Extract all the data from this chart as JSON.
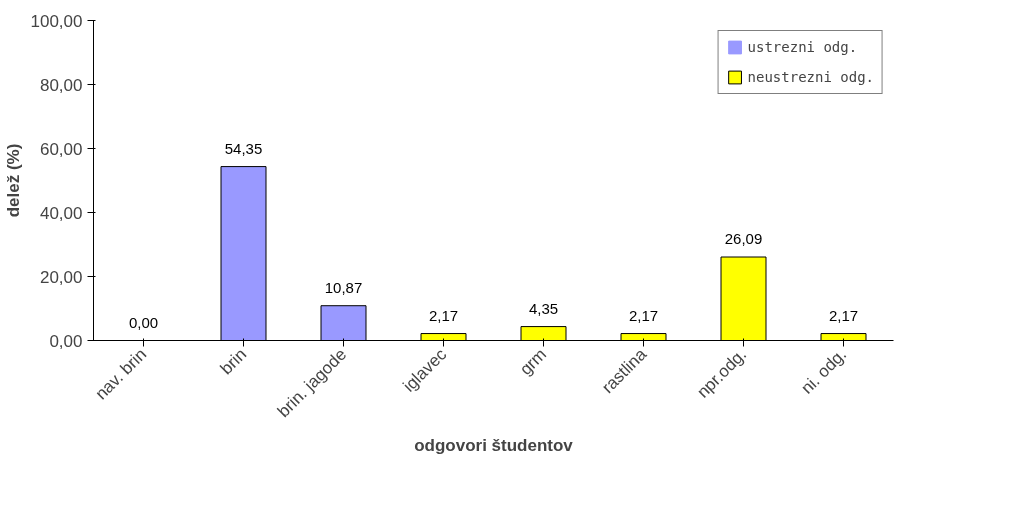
{
  "chart_data": {
    "type": "bar",
    "xlabel": "odgovori študentov",
    "ylabel": "delež (%)",
    "categories": [
      "nav. brin",
      "brin",
      "brin. jagode",
      "iglavec",
      "grm",
      "rastlina",
      "npr.odg.",
      "ni. odg."
    ],
    "series": [
      {
        "name": "ustrezni odg.",
        "color": "#9999ff",
        "values": [
          0.0,
          54.35,
          10.87,
          null,
          null,
          null,
          null,
          null
        ],
        "value_labels": [
          "0,00",
          "54,35",
          "10,87",
          null,
          null,
          null,
          null,
          null
        ]
      },
      {
        "name": "neustrezni odg.",
        "color": "#ffff00",
        "values": [
          null,
          null,
          null,
          2.17,
          4.35,
          2.17,
          26.09,
          2.17
        ],
        "value_labels": [
          null,
          null,
          null,
          "2,17",
          "4,35",
          "2,17",
          "26,09",
          "2,17"
        ]
      }
    ],
    "ylim": [
      0,
      100
    ],
    "yticks": [
      {
        "value": 0,
        "label": "0,00"
      },
      {
        "value": 20,
        "label": "20,00"
      },
      {
        "value": 40,
        "label": "40,00"
      },
      {
        "value": 60,
        "label": "60,00"
      },
      {
        "value": 80,
        "label": "80,00"
      },
      {
        "value": 100,
        "label": "100,00"
      }
    ],
    "grid": false,
    "legend": "top right"
  }
}
